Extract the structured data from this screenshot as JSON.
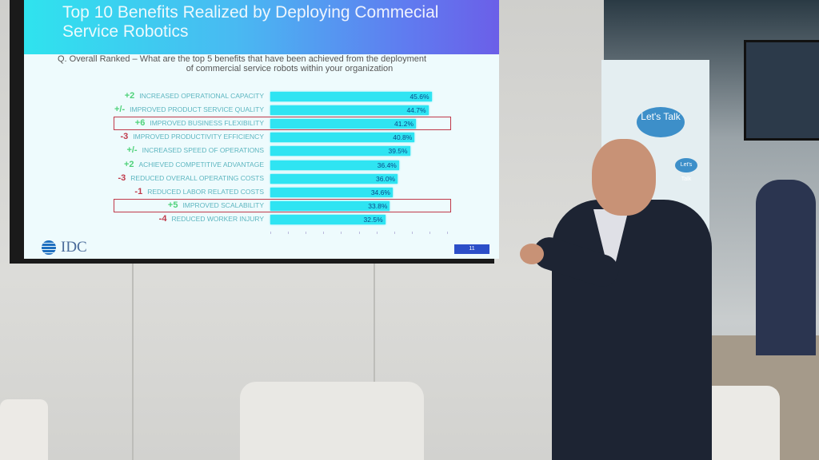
{
  "slide": {
    "title": "Top 10 Benefits Realized by Deploying Commecial Service Robotics",
    "question_line1": "Q.  Overall Ranked – What are the top 5 benefits that have been achieved from the deployment",
    "question_line2": "of commercial service robots within your organization",
    "logo_text": "IDC",
    "page_number": "11"
  },
  "booth": {
    "bubble_large": "Let's Talk",
    "bubble_small": "Let's Talk"
  },
  "colors": {
    "bar": "#2fe4f2",
    "positive_change": "#4fd27a",
    "negative_change": "#c0394a",
    "highlight_box": "#c0394a"
  },
  "chart_data": {
    "type": "bar",
    "orientation": "horizontal",
    "title": "Top 10 Benefits Realized by Deploying Commecial Service Robotics",
    "xlim": [
      0,
      50
    ],
    "categories": [
      "INCREASED OPERATIONAL CAPACITY",
      "IMPROVED PRODUCT SERVICE QUALITY",
      "IMPROVED BUSINESS FLEXIBILITY",
      "IMPROVED PRODUCTIVITY EFFICIENCY",
      "INCREASED SPEED OF OPERATIONS",
      "ACHIEVED COMPETITIVE ADVANTAGE",
      "REDUCED OVERALL OPERATING COSTS",
      "REDUCED LABOR RELATED COSTS",
      "IMPROVED SCALABILITY",
      "REDUCED WORKER INJURY"
    ],
    "values": [
      45.6,
      44.7,
      41.2,
      40.8,
      39.5,
      36.4,
      36.0,
      34.6,
      33.8,
      32.5
    ],
    "value_labels": [
      "45.6%",
      "44.7%",
      "41.2%",
      "40.8%",
      "39.5%",
      "36.4%",
      "36.0%",
      "34.6%",
      "33.8%",
      "32.5%"
    ],
    "rank_changes": [
      "+2",
      "+/-",
      "+6",
      "-3",
      "+/-",
      "+2",
      "-3",
      "-1",
      "+5",
      "-4"
    ],
    "highlighted": [
      false,
      false,
      true,
      false,
      false,
      false,
      false,
      false,
      true,
      false
    ]
  }
}
